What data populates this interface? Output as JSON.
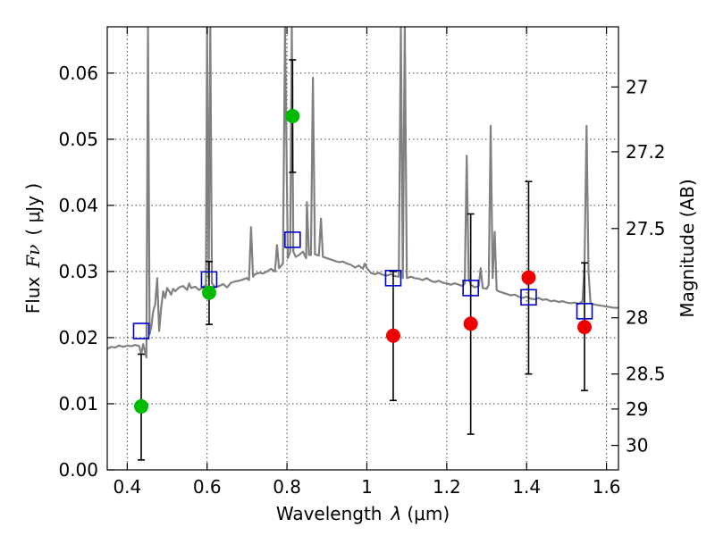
{
  "chart_data": {
    "type": "scatter",
    "title": "",
    "xlabel_text": "Wavelength",
    "xlabel_symbol": "λ",
    "xlabel_unit": "(μm)",
    "ylabel_text": "Flux",
    "ylabel_symbol": "Fν",
    "ylabel_unit": "( μJy )",
    "y2label": "Magnitude (AB)",
    "xlim": [
      0.35,
      1.63
    ],
    "ylim": [
      0.0,
      0.067
    ],
    "x_ticks": [
      0.4,
      0.6,
      0.8,
      1.0,
      1.2,
      1.4,
      1.6
    ],
    "x_tick_labels": [
      "0.4",
      "0.6",
      "0.8",
      "1",
      "1.2",
      "1.4",
      "1.6"
    ],
    "y_ticks": [
      0.0,
      0.01,
      0.02,
      0.03,
      0.04,
      0.05,
      0.06
    ],
    "y_tick_labels": [
      "0.00",
      "0.01",
      "0.02",
      "0.03",
      "0.04",
      "0.05",
      "0.06"
    ],
    "y2_ticks": [
      {
        "label": "27",
        "flux": 0.0579
      },
      {
        "label": "27.2",
        "flux": 0.0481
      },
      {
        "label": "27.5",
        "flux": 0.0365
      },
      {
        "label": "28",
        "flux": 0.023
      },
      {
        "label": "28.5",
        "flux": 0.0145
      },
      {
        "label": "29",
        "flux": 0.0092
      },
      {
        "label": "30",
        "flux": 0.0037
      }
    ],
    "grid": true,
    "colors": {
      "model": "#808080",
      "model_photometry": "#0000cc",
      "detection": "#00bb00",
      "upper": "#ee0000",
      "errorbar": "#000000"
    },
    "series": [
      {
        "name": "model_spectrum",
        "style": "line",
        "points": [
          [
            0.35,
            0.0183
          ],
          [
            0.36,
            0.0186
          ],
          [
            0.37,
            0.0185
          ],
          [
            0.38,
            0.0188
          ],
          [
            0.39,
            0.0186
          ],
          [
            0.4,
            0.0188
          ],
          [
            0.41,
            0.0187
          ],
          [
            0.42,
            0.0189
          ],
          [
            0.43,
            0.0187
          ],
          [
            0.435,
            0.0175
          ],
          [
            0.44,
            0.019
          ],
          [
            0.448,
            0.017
          ],
          [
            0.452,
            0.067
          ],
          [
            0.456,
            0.0205
          ],
          [
            0.46,
            0.0215
          ],
          [
            0.465,
            0.024
          ],
          [
            0.47,
            0.025
          ],
          [
            0.475,
            0.029
          ],
          [
            0.48,
            0.021
          ],
          [
            0.485,
            0.0245
          ],
          [
            0.49,
            0.027
          ],
          [
            0.495,
            0.026
          ],
          [
            0.5,
            0.0275
          ],
          [
            0.505,
            0.027
          ],
          [
            0.51,
            0.0265
          ],
          [
            0.515,
            0.0274
          ],
          [
            0.52,
            0.027
          ],
          [
            0.53,
            0.0276
          ],
          [
            0.54,
            0.0278
          ],
          [
            0.55,
            0.0272
          ],
          [
            0.555,
            0.0282
          ],
          [
            0.56,
            0.0275
          ],
          [
            0.57,
            0.0277
          ],
          [
            0.58,
            0.0272
          ],
          [
            0.59,
            0.0276
          ],
          [
            0.597,
            0.028
          ],
          [
            0.6,
            0.067
          ],
          [
            0.604,
            0.029
          ],
          [
            0.608,
            0.067
          ],
          [
            0.612,
            0.0282
          ],
          [
            0.62,
            0.0276
          ],
          [
            0.63,
            0.0278
          ],
          [
            0.64,
            0.0281
          ],
          [
            0.65,
            0.0276
          ],
          [
            0.66,
            0.0283
          ],
          [
            0.67,
            0.0285
          ],
          [
            0.68,
            0.0286
          ],
          [
            0.69,
            0.0288
          ],
          [
            0.7,
            0.029
          ],
          [
            0.705,
            0.0287
          ],
          [
            0.71,
            0.0367
          ],
          [
            0.715,
            0.0292
          ],
          [
            0.72,
            0.0296
          ],
          [
            0.73,
            0.0298
          ],
          [
            0.74,
            0.0297
          ],
          [
            0.75,
            0.03
          ],
          [
            0.76,
            0.0304
          ],
          [
            0.77,
            0.03
          ],
          [
            0.775,
            0.034
          ],
          [
            0.78,
            0.0305
          ],
          [
            0.79,
            0.0312
          ],
          [
            0.795,
            0.067
          ],
          [
            0.802,
            0.032
          ],
          [
            0.808,
            0.033
          ],
          [
            0.812,
            0.067
          ],
          [
            0.816,
            0.033
          ],
          [
            0.822,
            0.0322
          ],
          [
            0.83,
            0.0325
          ],
          [
            0.84,
            0.033
          ],
          [
            0.848,
            0.032
          ],
          [
            0.85,
            0.0405
          ],
          [
            0.855,
            0.0325
          ],
          [
            0.86,
            0.0325
          ],
          [
            0.865,
            0.0593
          ],
          [
            0.87,
            0.0326
          ],
          [
            0.88,
            0.0324
          ],
          [
            0.885,
            0.038
          ],
          [
            0.89,
            0.0322
          ],
          [
            0.9,
            0.032
          ],
          [
            0.91,
            0.0318
          ],
          [
            0.92,
            0.0316
          ],
          [
            0.93,
            0.0314
          ],
          [
            0.94,
            0.0315
          ],
          [
            0.95,
            0.0312
          ],
          [
            0.96,
            0.031
          ],
          [
            0.97,
            0.0306
          ],
          [
            0.98,
            0.0309
          ],
          [
            0.99,
            0.0304
          ],
          [
            0.995,
            0.0312
          ],
          [
            1.0,
            0.0305
          ],
          [
            1.01,
            0.0298
          ],
          [
            1.02,
            0.0296
          ],
          [
            1.03,
            0.0298
          ],
          [
            1.04,
            0.0295
          ],
          [
            1.05,
            0.0294
          ],
          [
            1.06,
            0.0296
          ],
          [
            1.07,
            0.0293
          ],
          [
            1.08,
            0.0292
          ],
          [
            1.085,
            0.067
          ],
          [
            1.09,
            0.029
          ],
          [
            1.095,
            0.067
          ],
          [
            1.1,
            0.029
          ],
          [
            1.11,
            0.0292
          ],
          [
            1.12,
            0.029
          ],
          [
            1.13,
            0.0289
          ],
          [
            1.14,
            0.0287
          ],
          [
            1.15,
            0.029
          ],
          [
            1.16,
            0.0286
          ],
          [
            1.17,
            0.0284
          ],
          [
            1.18,
            0.0286
          ],
          [
            1.19,
            0.0283
          ],
          [
            1.2,
            0.0282
          ],
          [
            1.21,
            0.028
          ],
          [
            1.22,
            0.0282
          ],
          [
            1.23,
            0.028
          ],
          [
            1.24,
            0.0278
          ],
          [
            1.245,
            0.0282
          ],
          [
            1.25,
            0.0475
          ],
          [
            1.255,
            0.029
          ],
          [
            1.26,
            0.028
          ],
          [
            1.27,
            0.0276
          ],
          [
            1.28,
            0.0278
          ],
          [
            1.285,
            0.0305
          ],
          [
            1.29,
            0.0275
          ],
          [
            1.3,
            0.0274
          ],
          [
            1.305,
            0.028
          ],
          [
            1.31,
            0.052
          ],
          [
            1.315,
            0.029
          ],
          [
            1.32,
            0.036
          ],
          [
            1.325,
            0.0272
          ],
          [
            1.33,
            0.027
          ],
          [
            1.34,
            0.0268
          ],
          [
            1.35,
            0.0266
          ],
          [
            1.36,
            0.0264
          ],
          [
            1.37,
            0.0265
          ],
          [
            1.38,
            0.0262
          ],
          [
            1.39,
            0.026
          ],
          [
            1.4,
            0.0262
          ],
          [
            1.41,
            0.0259
          ],
          [
            1.42,
            0.0258
          ],
          [
            1.43,
            0.026
          ],
          [
            1.44,
            0.0257
          ],
          [
            1.45,
            0.0258
          ],
          [
            1.46,
            0.0255
          ],
          [
            1.47,
            0.0256
          ],
          [
            1.48,
            0.0254
          ],
          [
            1.49,
            0.0255
          ],
          [
            1.5,
            0.0253
          ],
          [
            1.51,
            0.0252
          ],
          [
            1.52,
            0.0253
          ],
          [
            1.53,
            0.0251
          ],
          [
            1.54,
            0.0255
          ],
          [
            1.545,
            0.031
          ],
          [
            1.55,
            0.052
          ],
          [
            1.555,
            0.03
          ],
          [
            1.56,
            0.0252
          ],
          [
            1.57,
            0.025
          ],
          [
            1.58,
            0.0249
          ],
          [
            1.59,
            0.0248
          ],
          [
            1.6,
            0.0247
          ],
          [
            1.61,
            0.0246
          ],
          [
            1.62,
            0.0245
          ],
          [
            1.63,
            0.0245
          ]
        ]
      },
      {
        "name": "model_photometry",
        "style": "open_square",
        "points": [
          {
            "x": 0.435,
            "y": 0.021
          },
          {
            "x": 0.605,
            "y": 0.0288
          },
          {
            "x": 0.814,
            "y": 0.0348
          },
          {
            "x": 1.066,
            "y": 0.029
          },
          {
            "x": 1.26,
            "y": 0.0275
          },
          {
            "x": 1.405,
            "y": 0.0261
          },
          {
            "x": 1.545,
            "y": 0.024
          }
        ]
      },
      {
        "name": "detections",
        "style": "filled_circle",
        "points": [
          {
            "x": 0.435,
            "y": 0.0096,
            "ylo": 0.0015,
            "yhi": 0.0175
          },
          {
            "x": 0.605,
            "y": 0.0268,
            "ylo": 0.022,
            "yhi": 0.0315
          },
          {
            "x": 0.814,
            "y": 0.0535,
            "ylo": 0.045,
            "yhi": 0.062
          }
        ]
      },
      {
        "name": "upper_limits",
        "style": "filled_circle",
        "points": [
          {
            "x": 1.066,
            "y": 0.0203,
            "ylo": 0.0105,
            "yhi": 0.03
          },
          {
            "x": 1.26,
            "y": 0.0221,
            "ylo": 0.0054,
            "yhi": 0.0387
          },
          {
            "x": 1.405,
            "y": 0.0291,
            "ylo": 0.0145,
            "yhi": 0.0436
          },
          {
            "x": 1.545,
            "y": 0.0216,
            "ylo": 0.012,
            "yhi": 0.0313
          }
        ]
      }
    ]
  }
}
